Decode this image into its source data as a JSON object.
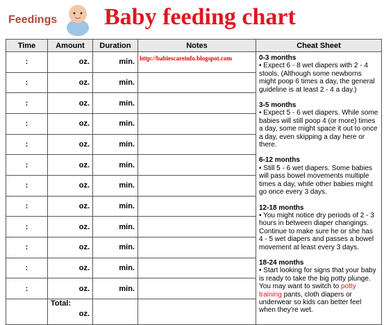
{
  "header": {
    "label": "Feedings",
    "title": "Baby feeding chart"
  },
  "table": {
    "columns": [
      "Time",
      "Amount",
      "Duration",
      "Notes",
      "Cheat Sheet"
    ],
    "rows": [
      {
        "time": ":",
        "amount": "oz.",
        "duration": "min.",
        "notes": "http://babiescareinfo.blogspot.com"
      },
      {
        "time": ":",
        "amount": "oz.",
        "duration": "min."
      },
      {
        "time": ":",
        "amount": "oz.",
        "duration": "min."
      },
      {
        "time": ":",
        "amount": "oz.",
        "duration": "min."
      },
      {
        "time": ":",
        "amount": "oz.",
        "duration": "min."
      },
      {
        "time": ":",
        "amount": "oz.",
        "duration": "min."
      },
      {
        "time": ":",
        "amount": "oz.",
        "duration": "min."
      },
      {
        "time": ":",
        "amount": "oz.",
        "duration": "min."
      },
      {
        "time": ":",
        "amount": "oz.",
        "duration": "min."
      },
      {
        "time": ":",
        "amount": "oz.",
        "duration": "min."
      },
      {
        "time": ":",
        "amount": "oz.",
        "duration": "min."
      },
      {
        "time": ":",
        "amount": "oz.",
        "duration": "min."
      }
    ],
    "total": {
      "label": "Total:",
      "unit": "oz."
    }
  },
  "cheat_sheet": {
    "sections": [
      {
        "heading": "0-3 months",
        "text": "• Expect 6 - 8 wet diapers with 2 - 4 stools. (Although some newborns might poop 6 times a day, the general guideline is at least 2 - 4 a day.)"
      },
      {
        "heading": "3-5 months",
        "text": "• Expect 5 - 6 wet diapers. While some babies will still poop 4 (or more) times a day, some might space it out to once a day, even skipping a day here or there."
      },
      {
        "heading": "6-12 months",
        "text": "• Still 5 - 6 wet diapers. Some babies will pass bowel movements multiple times a day, while other babies might go once every 3 days."
      },
      {
        "heading": "12-18 months",
        "text": "• You might notice dry periods of 2 - 3 hours in between diaper changings. Continue to make sure he or she has 4 - 5 wet diapers and passes a bowel movement at least every 3 days."
      },
      {
        "heading": "18-24 months",
        "text": "• Start looking for signs that your baby is ready to take the big potty plunge. You may want to switch to ",
        "link": "potty training",
        "text_after": " pants, cloth diapers or underwear so kids can better feel when they’re wet."
      }
    ]
  }
}
